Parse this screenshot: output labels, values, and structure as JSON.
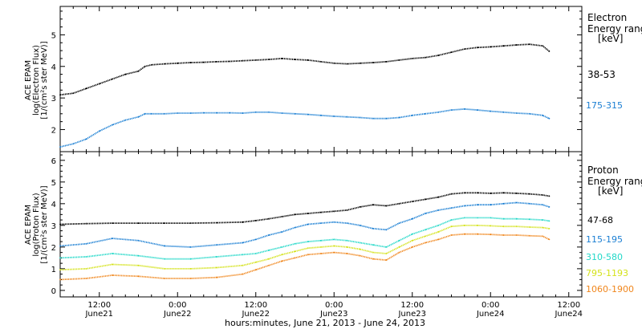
{
  "x_axis_label": "hours:minutes, June 21, 2013 - June 24, 2013",
  "x_ticks": [
    {
      "t": 12,
      "time": "12:00",
      "date": "June21"
    },
    {
      "t": 24,
      "time": "0:00",
      "date": "June22"
    },
    {
      "t": 36,
      "time": "12:00",
      "date": "June22"
    },
    {
      "t": 48,
      "time": "0:00",
      "date": "June23"
    },
    {
      "t": 60,
      "time": "12:00",
      "date": "June23"
    },
    {
      "t": 72,
      "time": "0:00",
      "date": "June24"
    },
    {
      "t": 84,
      "time": "12:00",
      "date": "June24"
    }
  ],
  "electron_panel": {
    "ylabel_lines": [
      "ACE EPAM",
      "log(Electron Flux)",
      "[1/(cm²s ster MeV)]"
    ],
    "legend_title": [
      "Electron",
      "Energy range",
      "[keV]"
    ],
    "yticks": [
      "2",
      "3",
      "4",
      "5"
    ],
    "channels": [
      {
        "name": "38-53",
        "color": "#000000"
      },
      {
        "name": "175-315",
        "color": "#1b7fd3"
      }
    ]
  },
  "proton_panel": {
    "ylabel_lines": [
      "ACE EPAM",
      "log(Proton Flux)",
      "[1/(cm²s ster MeV)]"
    ],
    "legend_title": [
      "Proton",
      "Energy range",
      "[keV]"
    ],
    "yticks": [
      "0",
      "1",
      "2",
      "3",
      "4",
      "5",
      "6"
    ],
    "channels": [
      {
        "name": "47-68",
        "color": "#000000"
      },
      {
        "name": "115-195",
        "color": "#1b7fd3"
      },
      {
        "name": "310-580",
        "color": "#22d8c8"
      },
      {
        "name": "795-1193",
        "color": "#d4e21a"
      },
      {
        "name": "1060-1900",
        "color": "#f0861c"
      }
    ]
  },
  "chart_data": [
    {
      "type": "scatter",
      "title": "",
      "xlabel": "hours:minutes, June 21, 2013 - June 24, 2013",
      "ylabel": "ACE EPAM log(Electron Flux) [1/(cm²s ster MeV)]",
      "x_unit": "hours since June 21, 2013 00:00",
      "xlim": [
        6,
        86
      ],
      "ylim": [
        1.3,
        5.9
      ],
      "series": [
        {
          "name": "38-53",
          "color": "#000000",
          "x": [
            6,
            8,
            10,
            12,
            14,
            16,
            18,
            19,
            20,
            22,
            24,
            26,
            28,
            30,
            32,
            34,
            36,
            38,
            40,
            42,
            44,
            46,
            48,
            50,
            52,
            54,
            56,
            58,
            60,
            62,
            64,
            66,
            68,
            70,
            72,
            74,
            76,
            78,
            80,
            81
          ],
          "y": [
            3.1,
            3.15,
            3.3,
            3.45,
            3.6,
            3.75,
            3.85,
            4.0,
            4.05,
            4.08,
            4.1,
            4.12,
            4.13,
            4.15,
            4.16,
            4.18,
            4.2,
            4.22,
            4.25,
            4.22,
            4.2,
            4.15,
            4.1,
            4.08,
            4.1,
            4.12,
            4.15,
            4.2,
            4.25,
            4.28,
            4.35,
            4.45,
            4.55,
            4.6,
            4.62,
            4.65,
            4.68,
            4.7,
            4.65,
            4.48
          ]
        },
        {
          "name": "175-315",
          "color": "#1b7fd3",
          "x": [
            6,
            8,
            10,
            12,
            14,
            16,
            18,
            19,
            20,
            22,
            24,
            26,
            28,
            30,
            32,
            34,
            36,
            38,
            40,
            42,
            44,
            46,
            48,
            50,
            52,
            54,
            56,
            58,
            60,
            62,
            64,
            66,
            68,
            70,
            72,
            74,
            76,
            78,
            80,
            81
          ],
          "y": [
            1.45,
            1.55,
            1.7,
            1.95,
            2.15,
            2.3,
            2.4,
            2.5,
            2.5,
            2.5,
            2.52,
            2.52,
            2.53,
            2.53,
            2.53,
            2.52,
            2.55,
            2.55,
            2.52,
            2.5,
            2.48,
            2.45,
            2.42,
            2.4,
            2.38,
            2.35,
            2.35,
            2.38,
            2.45,
            2.5,
            2.55,
            2.62,
            2.65,
            2.62,
            2.58,
            2.55,
            2.52,
            2.5,
            2.45,
            2.35
          ]
        }
      ]
    },
    {
      "type": "scatter",
      "title": "",
      "xlabel": "hours:minutes, June 21, 2013 - June 24, 2013",
      "ylabel": "ACE EPAM log(Proton Flux) [1/(cm²s ster MeV)]",
      "x_unit": "hours since June 21, 2013 00:00",
      "xlim": [
        6,
        86
      ],
      "ylim": [
        -0.3,
        6.4
      ],
      "series": [
        {
          "name": "47-68",
          "color": "#000000",
          "x": [
            6,
            10,
            14,
            18,
            22,
            26,
            30,
            34,
            36,
            38,
            40,
            42,
            44,
            46,
            48,
            50,
            52,
            54,
            56,
            58,
            60,
            62,
            64,
            66,
            68,
            70,
            72,
            74,
            76,
            78,
            80,
            81
          ],
          "y": [
            3.05,
            3.08,
            3.1,
            3.1,
            3.1,
            3.1,
            3.12,
            3.15,
            3.22,
            3.3,
            3.4,
            3.5,
            3.55,
            3.6,
            3.65,
            3.7,
            3.85,
            3.95,
            3.9,
            4.0,
            4.1,
            4.2,
            4.3,
            4.45,
            4.5,
            4.5,
            4.48,
            4.5,
            4.48,
            4.45,
            4.4,
            4.35
          ]
        },
        {
          "name": "115-195",
          "color": "#1b7fd3",
          "x": [
            6,
            10,
            14,
            18,
            22,
            26,
            30,
            34,
            36,
            38,
            40,
            42,
            44,
            46,
            48,
            50,
            52,
            54,
            56,
            58,
            60,
            62,
            64,
            66,
            68,
            70,
            72,
            74,
            76,
            78,
            80,
            81
          ],
          "y": [
            2.05,
            2.15,
            2.4,
            2.3,
            2.05,
            2.0,
            2.1,
            2.2,
            2.35,
            2.55,
            2.7,
            2.9,
            3.05,
            3.1,
            3.15,
            3.1,
            3.0,
            2.85,
            2.8,
            3.1,
            3.3,
            3.55,
            3.7,
            3.8,
            3.9,
            3.95,
            3.95,
            4.0,
            4.05,
            4.0,
            3.95,
            3.85
          ]
        },
        {
          "name": "310-580",
          "color": "#22d8c8",
          "x": [
            6,
            10,
            14,
            18,
            22,
            26,
            30,
            34,
            36,
            38,
            40,
            42,
            44,
            46,
            48,
            50,
            52,
            54,
            56,
            58,
            60,
            62,
            64,
            66,
            68,
            70,
            72,
            74,
            76,
            78,
            80,
            81
          ],
          "y": [
            1.5,
            1.55,
            1.7,
            1.6,
            1.45,
            1.45,
            1.55,
            1.65,
            1.7,
            1.85,
            2.0,
            2.15,
            2.25,
            2.3,
            2.35,
            2.3,
            2.2,
            2.1,
            2.0,
            2.3,
            2.6,
            2.8,
            3.0,
            3.25,
            3.35,
            3.35,
            3.35,
            3.3,
            3.3,
            3.28,
            3.25,
            3.2
          ]
        },
        {
          "name": "795-1193",
          "color": "#d4e21a",
          "x": [
            6,
            10,
            14,
            18,
            22,
            26,
            30,
            34,
            36,
            38,
            40,
            42,
            44,
            46,
            48,
            50,
            52,
            54,
            56,
            58,
            60,
            62,
            64,
            66,
            68,
            70,
            72,
            74,
            76,
            78,
            80,
            81
          ],
          "y": [
            0.95,
            1.0,
            1.2,
            1.15,
            1.0,
            1.0,
            1.05,
            1.15,
            1.3,
            1.45,
            1.65,
            1.8,
            1.95,
            2.0,
            2.05,
            2.0,
            1.9,
            1.75,
            1.7,
            2.0,
            2.3,
            2.5,
            2.7,
            2.95,
            3.0,
            3.0,
            2.98,
            2.95,
            2.95,
            2.92,
            2.9,
            2.85
          ]
        },
        {
          "name": "1060-1900",
          "color": "#f0861c",
          "x": [
            6,
            10,
            14,
            18,
            22,
            26,
            30,
            34,
            36,
            38,
            40,
            42,
            44,
            46,
            48,
            50,
            52,
            54,
            56,
            58,
            60,
            62,
            64,
            66,
            68,
            70,
            72,
            74,
            76,
            78,
            80,
            81
          ],
          "y": [
            0.5,
            0.55,
            0.7,
            0.65,
            0.55,
            0.55,
            0.6,
            0.75,
            0.95,
            1.15,
            1.35,
            1.5,
            1.65,
            1.7,
            1.75,
            1.7,
            1.6,
            1.45,
            1.4,
            1.75,
            2.0,
            2.2,
            2.35,
            2.55,
            2.6,
            2.6,
            2.58,
            2.55,
            2.55,
            2.52,
            2.5,
            2.35
          ]
        }
      ]
    }
  ]
}
